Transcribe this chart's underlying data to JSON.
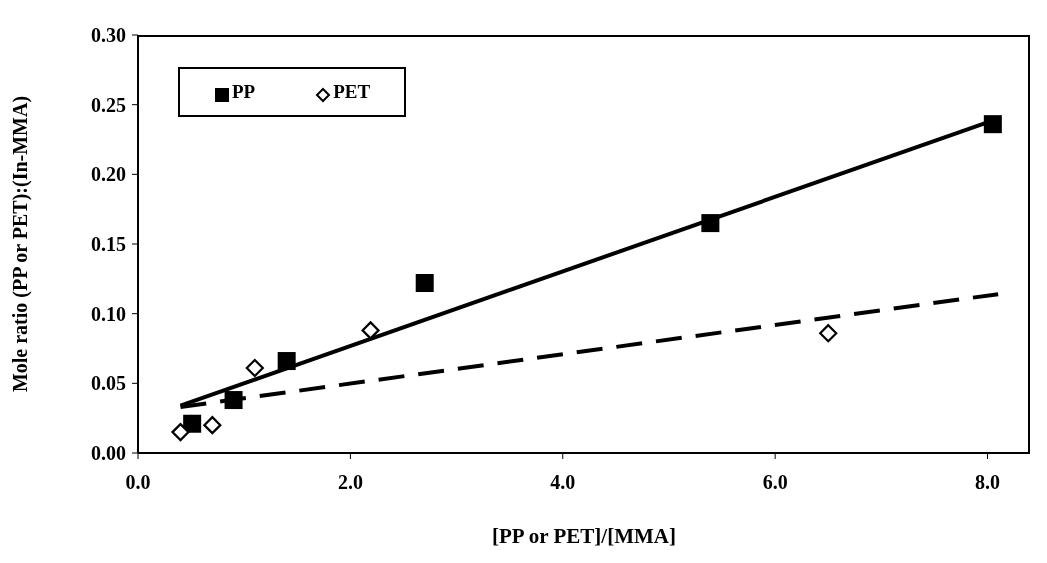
{
  "chart_data": {
    "type": "scatter",
    "xlabel": "[PP or PET]/[MMA]",
    "ylabel": "Mole ratio (PP or PET):(In-MMA)",
    "xlim": [
      0,
      8.4
    ],
    "xticks": [
      {
        "value": 0,
        "label": "0.0"
      },
      {
        "value": 2,
        "label": "2.0"
      },
      {
        "value": 4,
        "label": "4.0"
      },
      {
        "value": 6,
        "label": "6.0"
      },
      {
        "value": 8,
        "label": "8.0"
      }
    ],
    "ylim": [
      0,
      0.3
    ],
    "yticks": [
      {
        "value": 0,
        "label": "0.00"
      },
      {
        "value": 0.05,
        "label": "0.05"
      },
      {
        "value": 0.1,
        "label": "0.10"
      },
      {
        "value": 0.15,
        "label": "0.15"
      },
      {
        "value": 0.2,
        "label": "0.20"
      },
      {
        "value": 0.25,
        "label": "0.25"
      },
      {
        "value": 0.3,
        "label": "0.30"
      }
    ],
    "grid": false,
    "legend": "top left",
    "series": [
      {
        "name": "PP",
        "type": "scatter",
        "marker": "square",
        "color": "#000000",
        "x": [
          0.51,
          0.9,
          1.4,
          2.7,
          5.39,
          8.05
        ],
        "values": [
          0.021,
          0.038,
          0.066,
          0.122,
          0.165,
          0.236
        ]
      },
      {
        "name": "PET",
        "type": "scatter",
        "marker": "diamond",
        "color": "#000000",
        "x": [
          0.4,
          0.7,
          1.1,
          2.19,
          6.5
        ],
        "values": [
          0.015,
          0.02,
          0.061,
          0.088,
          0.086
        ]
      },
      {
        "type": "line",
        "line_style": "solid",
        "marker": "none",
        "color": "#000000",
        "x": [
          0.4,
          8.1
        ],
        "values": [
          0.034,
          0.24
        ]
      },
      {
        "type": "line",
        "line_style": "dashed",
        "marker": "none",
        "color": "#000000",
        "x": [
          0.4,
          8.1
        ],
        "values": [
          0.033,
          0.114
        ]
      }
    ]
  }
}
